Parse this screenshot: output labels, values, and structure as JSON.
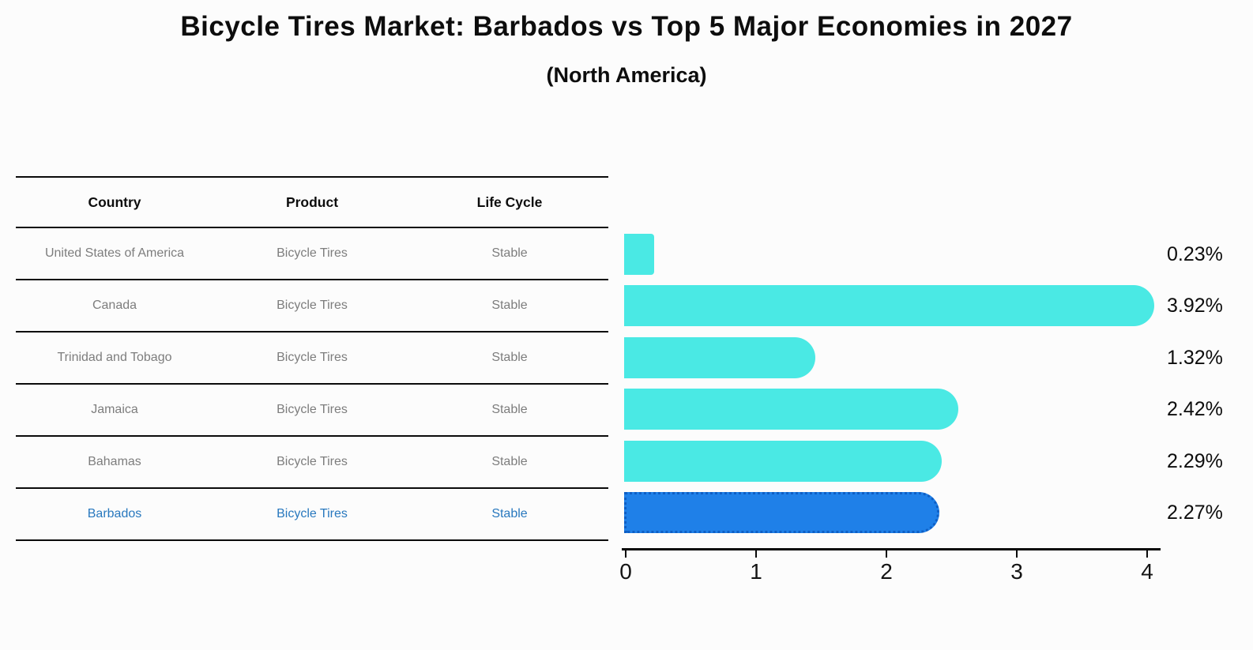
{
  "title": "Bicycle Tires Market: Barbados vs Top 5 Major Economies in 2027",
  "subtitle": "(North America)",
  "table": {
    "headers": [
      "Country",
      "Product",
      "Life Cycle"
    ],
    "rows": [
      {
        "country": "United States of America",
        "product": "Bicycle Tires",
        "life_cycle": "Stable",
        "highlighted": false
      },
      {
        "country": "Canada",
        "product": "Bicycle Tires",
        "life_cycle": "Stable",
        "highlighted": false
      },
      {
        "country": "Trinidad and Tobago",
        "product": "Bicycle Tires",
        "life_cycle": "Stable",
        "highlighted": false
      },
      {
        "country": "Jamaica",
        "product": "Bicycle Tires",
        "life_cycle": "Stable",
        "highlighted": false
      },
      {
        "country": "Bahamas",
        "product": "Bicycle Tires",
        "life_cycle": "Stable",
        "highlighted": false
      },
      {
        "country": "Barbados",
        "product": "Bicycle Tires",
        "life_cycle": "Stable",
        "highlighted": true
      }
    ]
  },
  "chart_data": {
    "type": "bar",
    "orientation": "horizontal",
    "title": "Bicycle Tires Market: Barbados vs Top 5 Major Economies in 2027",
    "subtitle": "(North America)",
    "categories": [
      "United States of America",
      "Canada",
      "Trinidad and Tobago",
      "Jamaica",
      "Bahamas",
      "Barbados"
    ],
    "values": [
      0.23,
      3.92,
      1.32,
      2.42,
      2.29,
      2.27
    ],
    "value_labels": [
      "0.23%",
      "3.92%",
      "1.32%",
      "2.42%",
      "2.29%",
      "2.27%"
    ],
    "highlighted_category": "Barbados",
    "x_ticks": [
      0,
      1,
      2,
      3,
      4
    ],
    "xlim": [
      0,
      4.1
    ],
    "grid": false,
    "legend": false,
    "bar_color": "#4ae9e4",
    "highlight_bar_color": "#1f80e8",
    "highlight_border_color": "#0e5ec4"
  },
  "colors": {
    "background": "#fcfcfc",
    "heading_text": "#0d0d0d",
    "row_text": "#7d7d7d",
    "highlight_text": "#2878be",
    "line": "#0a0a0a"
  }
}
